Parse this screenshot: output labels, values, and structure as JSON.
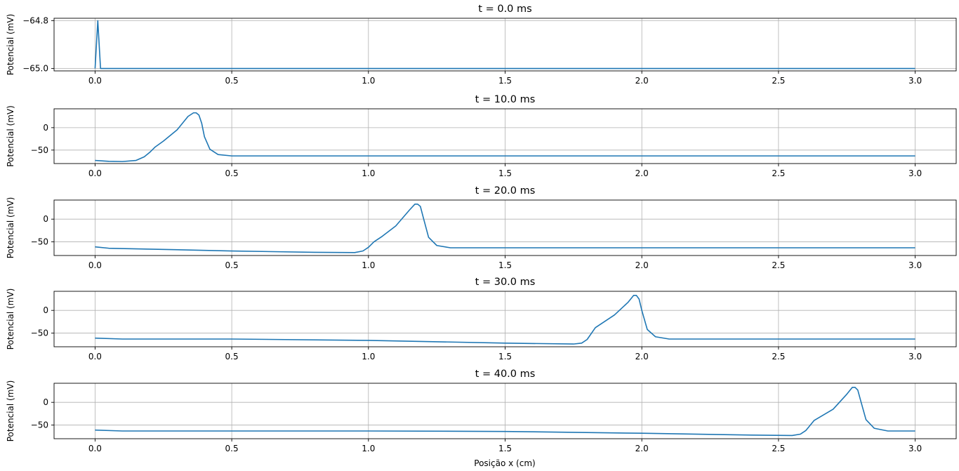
{
  "figure": {
    "xlabel": "Posição x (cm)"
  },
  "chart_data": [
    {
      "type": "line",
      "title": "t = 0.0 ms",
      "ylabel": "Potencial (mV)",
      "xlim": [
        -0.15,
        3.15
      ],
      "ylim": [
        -65.01,
        -64.79
      ],
      "xticks": [
        0.0,
        0.5,
        1.0,
        1.5,
        2.0,
        2.5,
        3.0
      ],
      "xtick_labels": [
        "0.0",
        "0.5",
        "1.0",
        "1.5",
        "2.0",
        "2.5",
        "3.0"
      ],
      "yticks": [
        -64.8,
        -65.0
      ],
      "ytick_labels": [
        "−64.8",
        "−65.0"
      ],
      "grid": true,
      "color": "#1f77b4",
      "series": [
        {
          "x": [
            0.0,
            0.01,
            0.02,
            3.0
          ],
          "y": [
            -65.0,
            -64.8,
            -65.0,
            -65.0
          ]
        }
      ]
    },
    {
      "type": "line",
      "title": "t = 10.0 ms",
      "ylabel": "Potencial (mV)",
      "xlim": [
        -0.15,
        3.15
      ],
      "ylim": [
        -80,
        42
      ],
      "xticks": [
        0.0,
        0.5,
        1.0,
        1.5,
        2.0,
        2.5,
        3.0
      ],
      "xtick_labels": [
        "0.0",
        "0.5",
        "1.0",
        "1.5",
        "2.0",
        "2.5",
        "3.0"
      ],
      "yticks": [
        0,
        -50
      ],
      "ytick_labels": [
        "0",
        "−50"
      ],
      "grid": true,
      "color": "#1f77b4",
      "series": [
        {
          "x": [
            0.0,
            0.05,
            0.1,
            0.15,
            0.18,
            0.2,
            0.22,
            0.25,
            0.3,
            0.34,
            0.36,
            0.37,
            0.38,
            0.39,
            0.4,
            0.42,
            0.45,
            0.5,
            3.0
          ],
          "y": [
            -73,
            -75,
            -75.5,
            -73,
            -65,
            -55,
            -43,
            -30,
            -5,
            25,
            33,
            33,
            28,
            10,
            -20,
            -48,
            -60,
            -63,
            -63
          ]
        }
      ]
    },
    {
      "type": "line",
      "title": "t = 20.0 ms",
      "ylabel": "Potencial (mV)",
      "xlim": [
        -0.15,
        3.15
      ],
      "ylim": [
        -80,
        42
      ],
      "xticks": [
        0.0,
        0.5,
        1.0,
        1.5,
        2.0,
        2.5,
        3.0
      ],
      "xtick_labels": [
        "0.0",
        "0.5",
        "1.0",
        "1.5",
        "2.0",
        "2.5",
        "3.0"
      ],
      "yticks": [
        0,
        -50
      ],
      "ytick_labels": [
        "0",
        "−50"
      ],
      "grid": true,
      "color": "#1f77b4",
      "series": [
        {
          "x": [
            0.0,
            0.05,
            0.2,
            0.5,
            0.8,
            0.95,
            0.98,
            1.0,
            1.02,
            1.05,
            1.1,
            1.15,
            1.17,
            1.18,
            1.19,
            1.2,
            1.22,
            1.25,
            1.3,
            3.0
          ],
          "y": [
            -61,
            -64,
            -66,
            -70,
            -73,
            -73.5,
            -70,
            -62,
            -50,
            -38,
            -15,
            20,
            33,
            33,
            28,
            5,
            -40,
            -58,
            -63,
            -63
          ]
        }
      ]
    },
    {
      "type": "line",
      "title": "t = 30.0 ms",
      "ylabel": "Potencial (mV)",
      "xlim": [
        -0.15,
        3.15
      ],
      "ylim": [
        -80,
        42
      ],
      "xticks": [
        0.0,
        0.5,
        1.0,
        1.5,
        2.0,
        2.5,
        3.0
      ],
      "xtick_labels": [
        "0.0",
        "0.5",
        "1.0",
        "1.5",
        "2.0",
        "2.5",
        "3.0"
      ],
      "yticks": [
        0,
        -50
      ],
      "ytick_labels": [
        "0",
        "−50"
      ],
      "grid": true,
      "color": "#1f77b4",
      "series": [
        {
          "x": [
            0.0,
            0.1,
            0.5,
            1.0,
            1.5,
            1.75,
            1.78,
            1.8,
            1.83,
            1.9,
            1.95,
            1.97,
            1.98,
            1.99,
            2.0,
            2.02,
            2.05,
            2.1,
            3.0
          ],
          "y": [
            -61,
            -63,
            -63,
            -66,
            -72,
            -74,
            -72,
            -64,
            -38,
            -10,
            18,
            33,
            33,
            25,
            0,
            -42,
            -58,
            -63,
            -63
          ]
        }
      ]
    },
    {
      "type": "line",
      "title": "t = 40.0 ms",
      "ylabel": "Potencial (mV)",
      "xlabel": "Posição x (cm)",
      "xlim": [
        -0.15,
        3.15
      ],
      "ylim": [
        -80,
        42
      ],
      "xticks": [
        0.0,
        0.5,
        1.0,
        1.5,
        2.0,
        2.5,
        3.0
      ],
      "xtick_labels": [
        "0.0",
        "0.5",
        "1.0",
        "1.5",
        "2.0",
        "2.5",
        "3.0"
      ],
      "yticks": [
        0,
        -50
      ],
      "ytick_labels": [
        "0",
        "−50"
      ],
      "grid": true,
      "color": "#1f77b4",
      "series": [
        {
          "x": [
            0.0,
            0.1,
            0.5,
            1.0,
            1.5,
            2.0,
            2.4,
            2.55,
            2.58,
            2.6,
            2.63,
            2.7,
            2.75,
            2.77,
            2.78,
            2.79,
            2.8,
            2.82,
            2.85,
            2.9,
            3.0
          ],
          "y": [
            -61,
            -63,
            -63,
            -63,
            -64,
            -68,
            -72,
            -73,
            -70,
            -62,
            -40,
            -15,
            18,
            33,
            33,
            27,
            5,
            -38,
            -57,
            -63,
            -63
          ]
        }
      ]
    }
  ]
}
